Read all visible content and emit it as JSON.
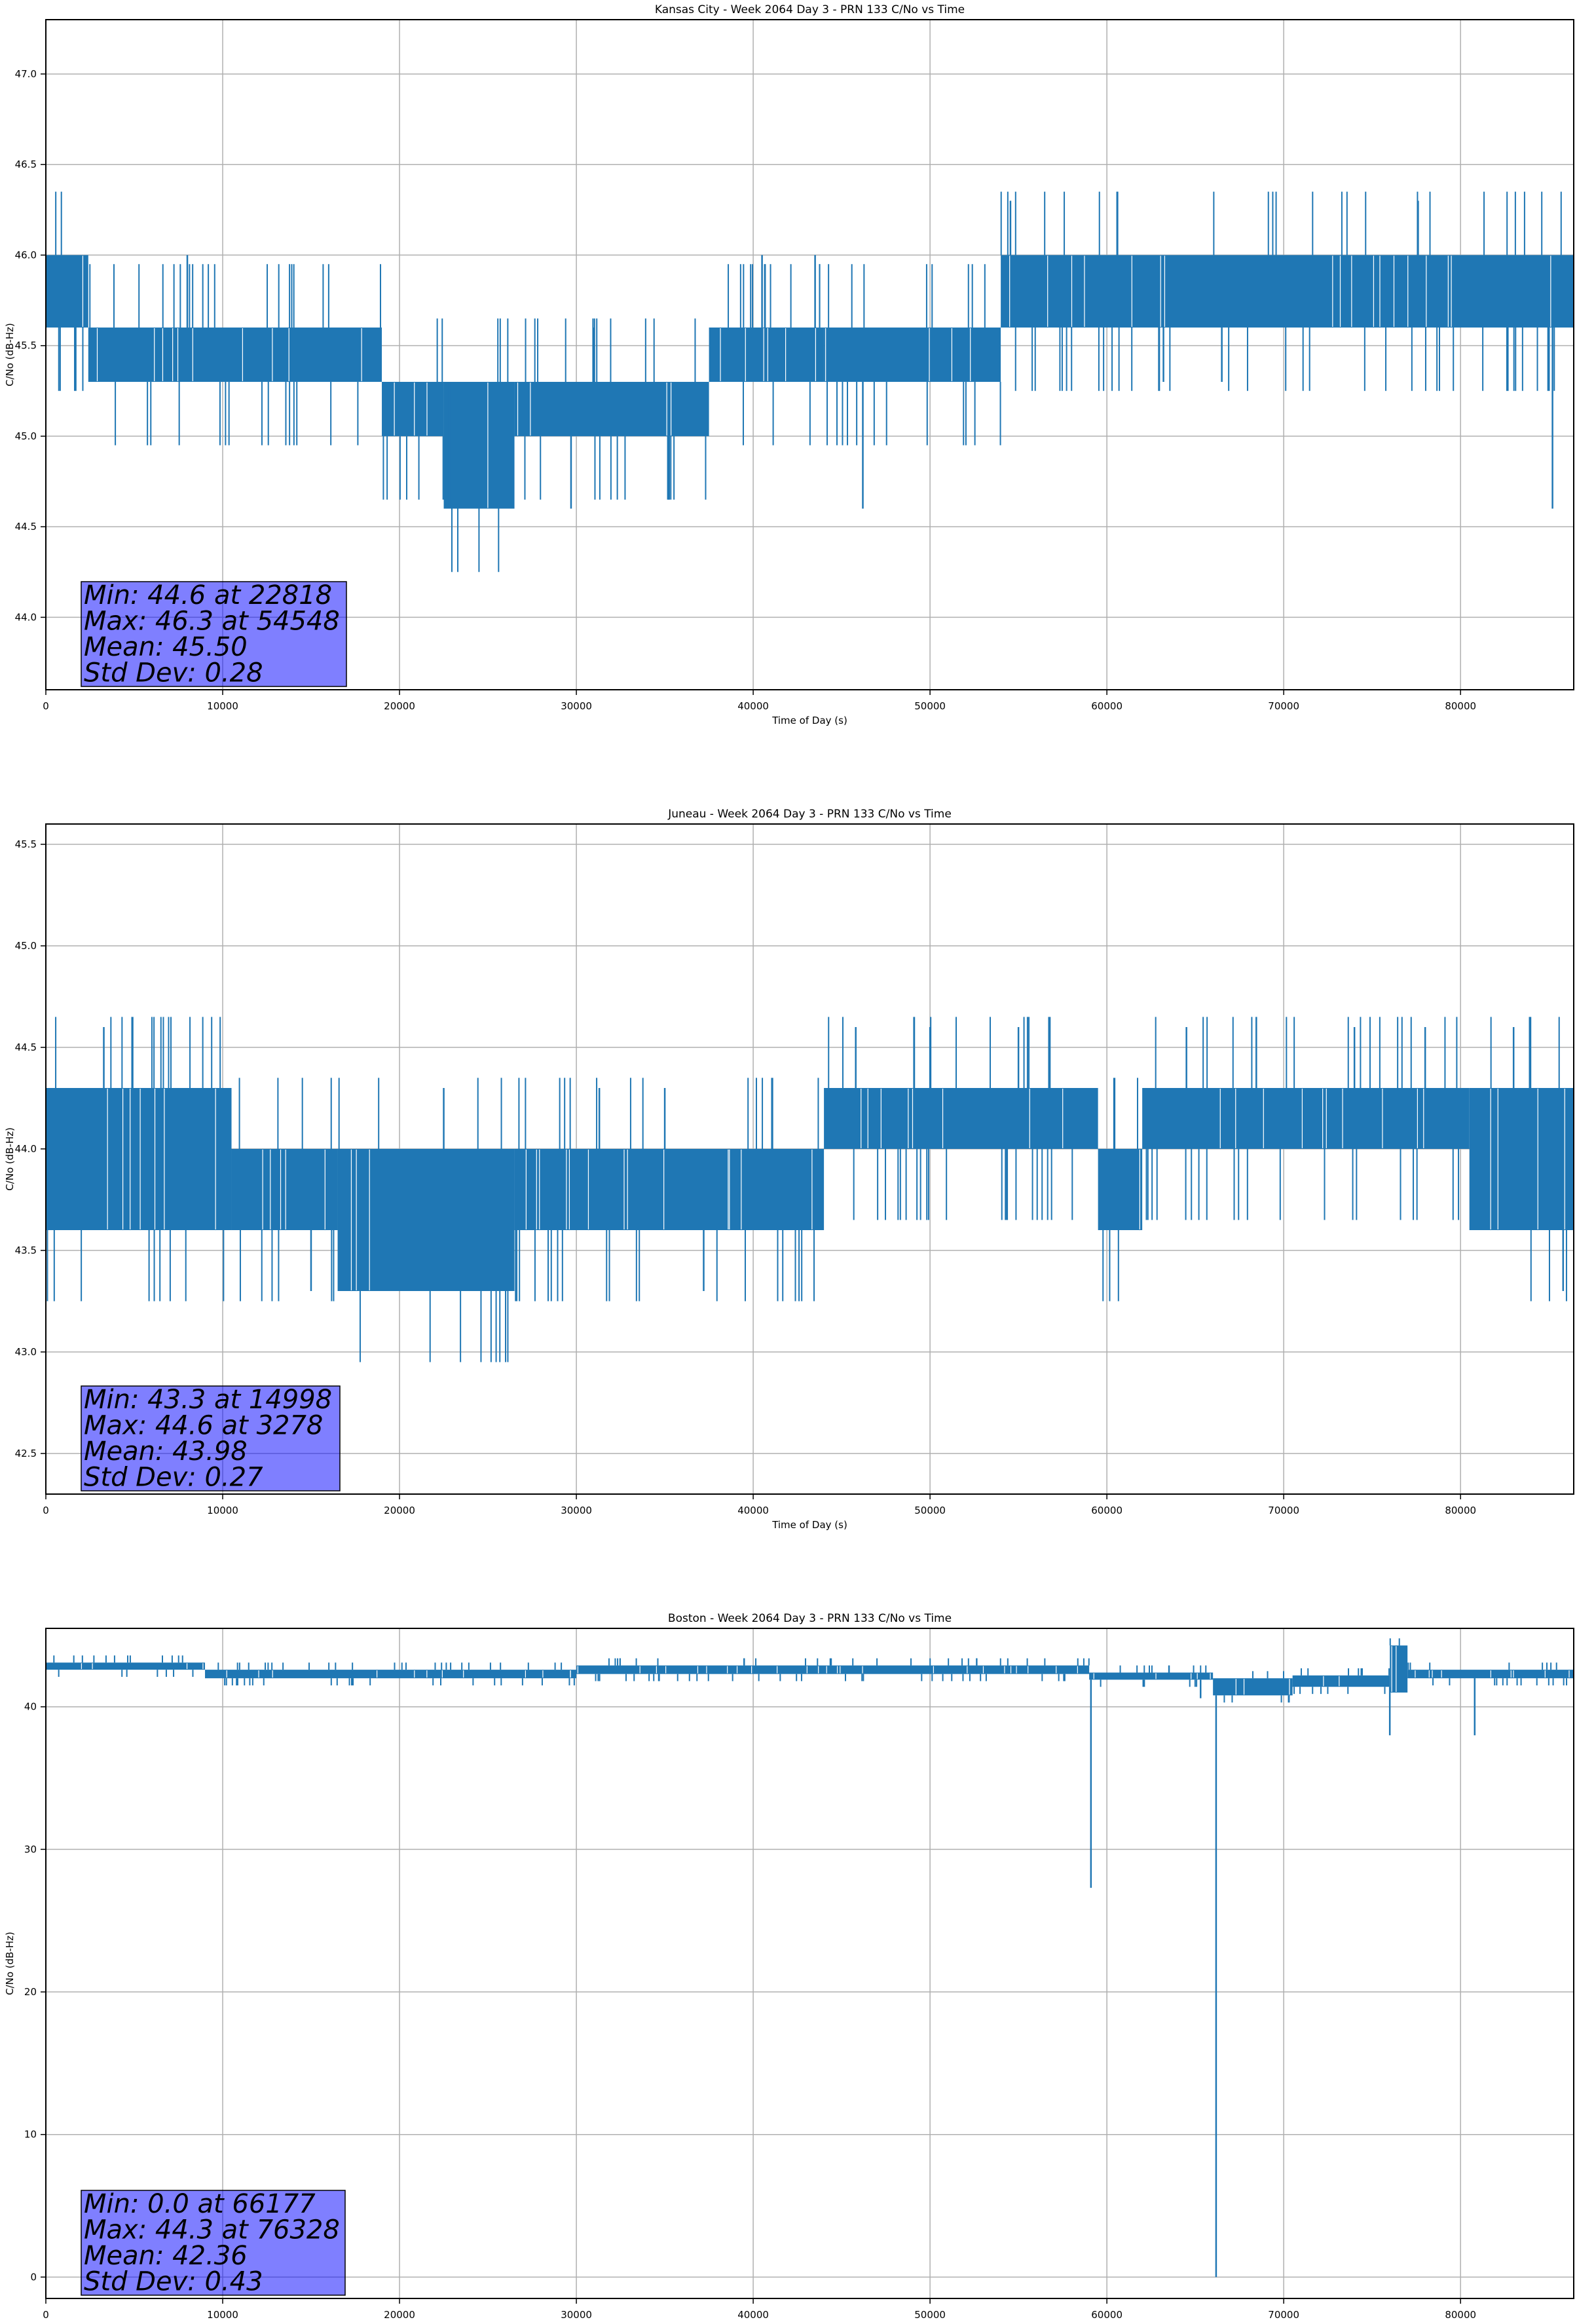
{
  "chart_data": [
    {
      "type": "line",
      "title": "Kansas City - Week 2064 Day 3 - PRN 133 C/No vs Time",
      "xlabel": "Time of Day (s)",
      "ylabel": "C/No (dB-Hz)",
      "xlim": [
        0,
        86400
      ],
      "ylim": [
        43.6,
        47.3
      ],
      "xticks": [
        0,
        10000,
        20000,
        30000,
        40000,
        50000,
        60000,
        70000,
        80000
      ],
      "yticks": [
        44.0,
        44.5,
        45.0,
        45.5,
        46.0,
        46.5,
        47.0
      ],
      "ytick_labels": [
        "44.0",
        "44.5",
        "45.0",
        "45.5",
        "46.0",
        "46.5",
        "47.0"
      ],
      "grid": true,
      "series_color": "#1f77b4",
      "band_segments": [
        {
          "x": [
            0,
            2400
          ],
          "y": [
            45.6,
            46.0
          ]
        },
        {
          "x": [
            2400,
            19000
          ],
          "y": [
            45.3,
            45.6
          ]
        },
        {
          "x": [
            19000,
            22500
          ],
          "y": [
            45.0,
            45.3
          ]
        },
        {
          "x": [
            22500,
            26500
          ],
          "y": [
            44.6,
            45.3
          ]
        },
        {
          "x": [
            26500,
            37500
          ],
          "y": [
            45.0,
            45.3
          ]
        },
        {
          "x": [
            37500,
            44000
          ],
          "y": [
            45.3,
            45.6
          ]
        },
        {
          "x": [
            44000,
            54000
          ],
          "y": [
            45.3,
            45.6
          ]
        },
        {
          "x": [
            54000,
            86400
          ],
          "y": [
            45.6,
            46.0
          ]
        }
      ],
      "spikes": [
        {
          "x": 8000,
          "y": 46.0
        },
        {
          "x": 22818,
          "y": 44.6
        },
        {
          "x": 29700,
          "y": 44.6
        },
        {
          "x": 46200,
          "y": 44.6
        },
        {
          "x": 54548,
          "y": 46.3
        },
        {
          "x": 77600,
          "y": 46.3
        },
        {
          "x": 85200,
          "y": 44.6
        },
        {
          "x": 31000,
          "y": 45.6
        },
        {
          "x": 40500,
          "y": 46.0
        },
        {
          "x": 43500,
          "y": 46.0
        },
        {
          "x": 63200,
          "y": 45.3
        },
        {
          "x": 66500,
          "y": 45.3
        }
      ],
      "stats": [
        "Min: 44.6 at 22818",
        "Max: 46.3 at 54548",
        "Mean: 45.50",
        "Std Dev: 0.28"
      ]
    },
    {
      "type": "line",
      "title": "Juneau - Week 2064 Day 3 - PRN 133 C/No vs Time",
      "xlabel": "Time of Day (s)",
      "ylabel": "C/No (dB-Hz)",
      "xlim": [
        0,
        86400
      ],
      "ylim": [
        42.3,
        45.6
      ],
      "xticks": [
        0,
        10000,
        20000,
        30000,
        40000,
        50000,
        60000,
        70000,
        80000
      ],
      "yticks": [
        42.5,
        43.0,
        43.5,
        44.0,
        44.5,
        45.0,
        45.5
      ],
      "ytick_labels": [
        "42.5",
        "43.0",
        "43.5",
        "44.0",
        "44.5",
        "45.0",
        "45.5"
      ],
      "grid": true,
      "series_color": "#1f77b4",
      "band_segments": [
        {
          "x": [
            0,
            10500
          ],
          "y": [
            43.6,
            44.3
          ]
        },
        {
          "x": [
            10500,
            16500
          ],
          "y": [
            43.6,
            44.0
          ]
        },
        {
          "x": [
            16500,
            26500
          ],
          "y": [
            43.3,
            44.0
          ]
        },
        {
          "x": [
            26500,
            44000
          ],
          "y": [
            43.6,
            44.0
          ]
        },
        {
          "x": [
            44000,
            59500
          ],
          "y": [
            44.0,
            44.3
          ]
        },
        {
          "x": [
            59500,
            62000
          ],
          "y": [
            43.6,
            44.0
          ]
        },
        {
          "x": [
            62000,
            80500
          ],
          "y": [
            44.0,
            44.3
          ]
        },
        {
          "x": [
            80500,
            86400
          ],
          "y": [
            43.6,
            44.3
          ]
        }
      ],
      "spikes": [
        {
          "x": 3278,
          "y": 44.6
        },
        {
          "x": 14998,
          "y": 43.3
        },
        {
          "x": 37200,
          "y": 43.3
        },
        {
          "x": 45800,
          "y": 44.6
        },
        {
          "x": 50000,
          "y": 44.6
        },
        {
          "x": 55000,
          "y": 44.6
        },
        {
          "x": 64500,
          "y": 44.6
        },
        {
          "x": 74000,
          "y": 44.6
        },
        {
          "x": 78000,
          "y": 44.6
        },
        {
          "x": 83000,
          "y": 44.6
        },
        {
          "x": 85800,
          "y": 43.3
        },
        {
          "x": 22500,
          "y": 44.3
        },
        {
          "x": 31300,
          "y": 44.3
        },
        {
          "x": 35000,
          "y": 44.3
        }
      ],
      "stats": [
        "Min: 43.3 at 14998",
        "Max: 44.6 at 3278",
        "Mean: 43.98",
        "Std Dev: 0.27"
      ]
    },
    {
      "type": "line",
      "title": "Boston - Week 2064 Day 3 - PRN 133 C/No vs Time",
      "xlabel": "Time of Day (s)",
      "ylabel": "C/No (dB-Hz)",
      "xlim": [
        0,
        86400
      ],
      "ylim": [
        -1.5,
        45.5
      ],
      "xticks": [
        0,
        10000,
        20000,
        30000,
        40000,
        50000,
        60000,
        70000,
        80000
      ],
      "yticks": [
        0,
        10,
        20,
        30,
        40
      ],
      "ytick_labels": [
        "0",
        "10",
        "20",
        "30",
        "40"
      ],
      "grid": true,
      "series_color": "#1f77b4",
      "band_segments": [
        {
          "x": [
            0,
            9000
          ],
          "y": [
            42.6,
            43.1
          ]
        },
        {
          "x": [
            9000,
            30000
          ],
          "y": [
            42.0,
            42.6
          ]
        },
        {
          "x": [
            30000,
            59000
          ],
          "y": [
            42.3,
            42.9
          ]
        },
        {
          "x": [
            59000,
            66000
          ],
          "y": [
            41.9,
            42.4
          ]
        },
        {
          "x": [
            66000,
            70500
          ],
          "y": [
            40.8,
            42.0
          ]
        },
        {
          "x": [
            70500,
            76000
          ],
          "y": [
            41.4,
            42.2
          ]
        },
        {
          "x": [
            76000,
            77000
          ],
          "y": [
            41.0,
            44.3
          ]
        },
        {
          "x": [
            77000,
            86400
          ],
          "y": [
            42.0,
            42.6
          ]
        }
      ],
      "spikes": [
        {
          "x": 59100,
          "y": 27.3
        },
        {
          "x": 66177,
          "y": 0.0
        },
        {
          "x": 76328,
          "y": 44.3
        },
        {
          "x": 76000,
          "y": 38.0
        },
        {
          "x": 80800,
          "y": 38.0
        },
        {
          "x": 65300,
          "y": 40.6
        }
      ],
      "stats": [
        "Min: 0.0 at 66177",
        "Max: 44.3 at 76328",
        "Mean: 42.36",
        "Std Dev: 0.43"
      ]
    }
  ]
}
